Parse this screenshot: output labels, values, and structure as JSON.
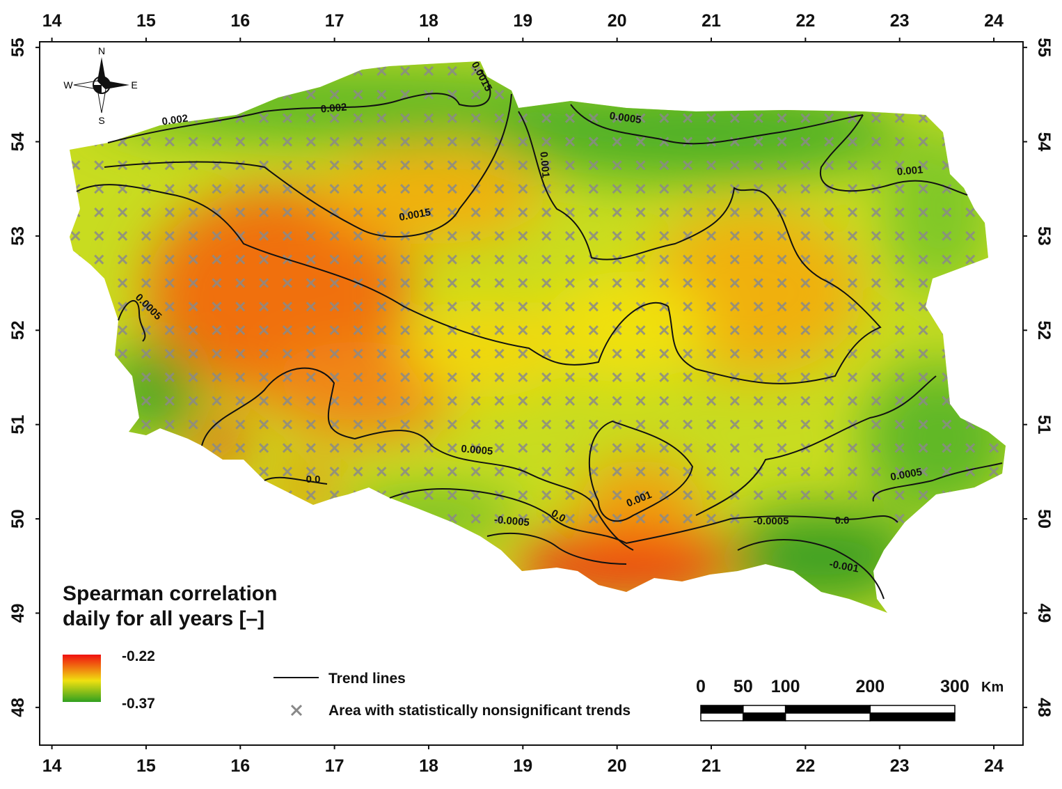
{
  "map": {
    "xlim": [
      13.87,
      24.31
    ],
    "ylim": [
      47.6,
      55.06
    ],
    "xticks": [
      14,
      15,
      16,
      17,
      18,
      19,
      20,
      21,
      22,
      23,
      24
    ],
    "yticks": [
      48,
      49,
      50,
      51,
      52,
      53,
      54,
      55
    ],
    "compass": {
      "n": "N",
      "s": "S",
      "w": "W",
      "e": "E"
    },
    "contour_labels": [
      "0.002",
      "0.002",
      "0.0015",
      "0.0005",
      "0.001",
      "0.001",
      "0.0015",
      "0.0005",
      "0.0005",
      "0.0",
      "0.001",
      "0.0005",
      "-0.0005",
      "0.0",
      "-0.0005",
      "0.0",
      "-0.001"
    ],
    "legend": {
      "title": [
        "Spearman correlation",
        "daily for all years [–]"
      ],
      "max_label": "-0.22",
      "min_label": "-0.37",
      "trend_lines": "Trend lines",
      "nonsignificant": "Area with statistically nonsignificant trends"
    },
    "scale_bar": {
      "ticks": [
        0,
        50,
        100,
        200,
        300
      ],
      "unit": "Km"
    }
  }
}
